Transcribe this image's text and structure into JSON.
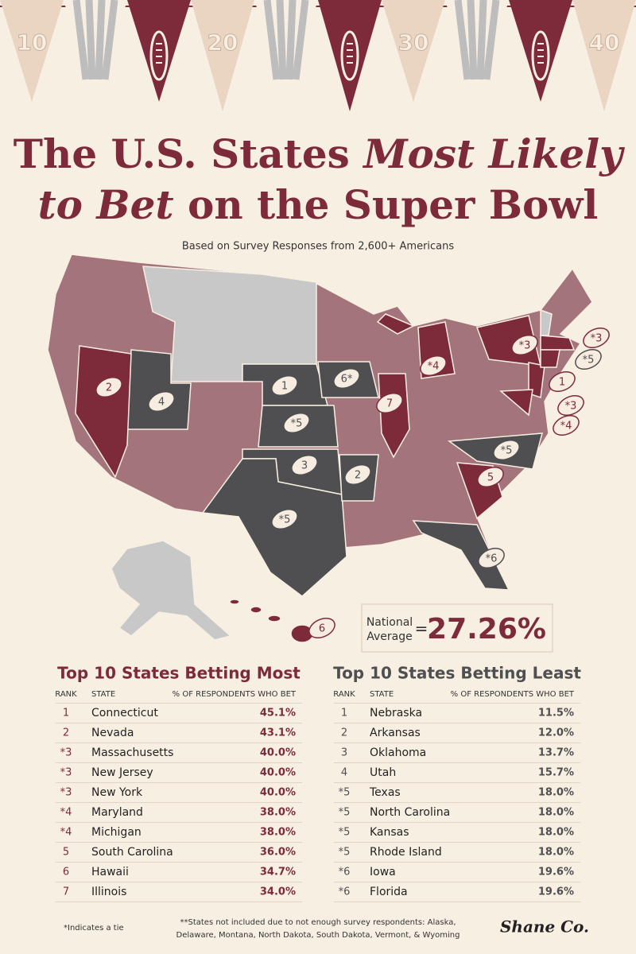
{
  "pennants": [
    "10",
    "20",
    "30",
    "40"
  ],
  "header": {
    "title_line1": [
      "The U.S. States",
      "Most Likely"
    ],
    "title_line2": [
      "to Bet",
      "on the Super Bowl"
    ],
    "subtitle": "Based on Survey Responses from 2,600+ Americans"
  },
  "map": {
    "markers": [
      {
        "label": "1",
        "color": "#7d2a3b"
      },
      {
        "label": "2",
        "color": "#7d2a3b"
      },
      {
        "label": "*3",
        "color": "#7d2a3b"
      },
      {
        "label": "*3",
        "color": "#7d2a3b"
      },
      {
        "label": "*3",
        "color": "#7d2a3b"
      },
      {
        "label": "*4",
        "color": "#7d2a3b"
      },
      {
        "label": "*4",
        "color": "#7d2a3b"
      },
      {
        "label": "5",
        "color": "#7d2a3b"
      },
      {
        "label": "6",
        "color": "#7d2a3b"
      },
      {
        "label": "7",
        "color": "#7d2a3b"
      },
      {
        "label": "1",
        "color": "#4f4f51"
      },
      {
        "label": "2",
        "color": "#4f4f51"
      },
      {
        "label": "3",
        "color": "#4f4f51"
      },
      {
        "label": "4",
        "color": "#4f4f51"
      },
      {
        "label": "*5",
        "color": "#4f4f51"
      },
      {
        "label": "*5",
        "color": "#4f4f51"
      },
      {
        "label": "*5",
        "color": "#4f4f51"
      },
      {
        "label": "*5",
        "color": "#4f4f51"
      },
      {
        "label": "6*",
        "color": "#4f4f51"
      },
      {
        "label": "*6",
        "color": "#4f4f51"
      }
    ]
  },
  "national_average": {
    "label_lines": [
      "National",
      "Average"
    ],
    "equals": "=",
    "value": "27.26%"
  },
  "tables": [
    {
      "title": "Top 10 States Betting Most",
      "color": "#7d2a3b",
      "columns": [
        "RANK",
        "STATE",
        "% OF RESPONDENTS WHO BET"
      ],
      "rows": [
        [
          "1",
          "Connecticut",
          "45.1%"
        ],
        [
          "2",
          "Nevada",
          "43.1%"
        ],
        [
          "*3",
          "Massachusetts",
          "40.0%"
        ],
        [
          "*3",
          "New Jersey",
          "40.0%"
        ],
        [
          "*3",
          "New York",
          "40.0%"
        ],
        [
          "*4",
          "Maryland",
          "38.0%"
        ],
        [
          "*4",
          "Michigan",
          "38.0%"
        ],
        [
          "5",
          "South Carolina",
          "36.0%"
        ],
        [
          "6",
          "Hawaii",
          "34.7%"
        ],
        [
          "7",
          "Illinois",
          "34.0%"
        ]
      ]
    },
    {
      "title": "Top 10 States Betting Least",
      "color": "#4f4f51",
      "columns": [
        "RANK",
        "STATE",
        "% OF RESPONDENTS WHO BET"
      ],
      "rows": [
        [
          "1",
          "Nebraska",
          "11.5%"
        ],
        [
          "2",
          "Arkansas",
          "12.0%"
        ],
        [
          "3",
          "Oklahoma",
          "13.7%"
        ],
        [
          "4",
          "Utah",
          "15.7%"
        ],
        [
          "*5",
          "Texas",
          "18.0%"
        ],
        [
          "*5",
          "North Carolina",
          "18.0%"
        ],
        [
          "*5",
          "Kansas",
          "18.0%"
        ],
        [
          "*5",
          "Rhode Island",
          "18.0%"
        ],
        [
          "*6",
          "Iowa",
          "19.6%"
        ],
        [
          "*6",
          "Florida",
          "19.6%"
        ]
      ]
    }
  ],
  "footnotes": {
    "tie": "*Indicates a tie",
    "excluded": [
      "**States not included due to not enough survey respondents: Alaska,",
      "Delaware, Montana, North Dakota, South Dakota, Vermont, & Wyoming"
    ]
  },
  "logo": "Shane Co."
}
